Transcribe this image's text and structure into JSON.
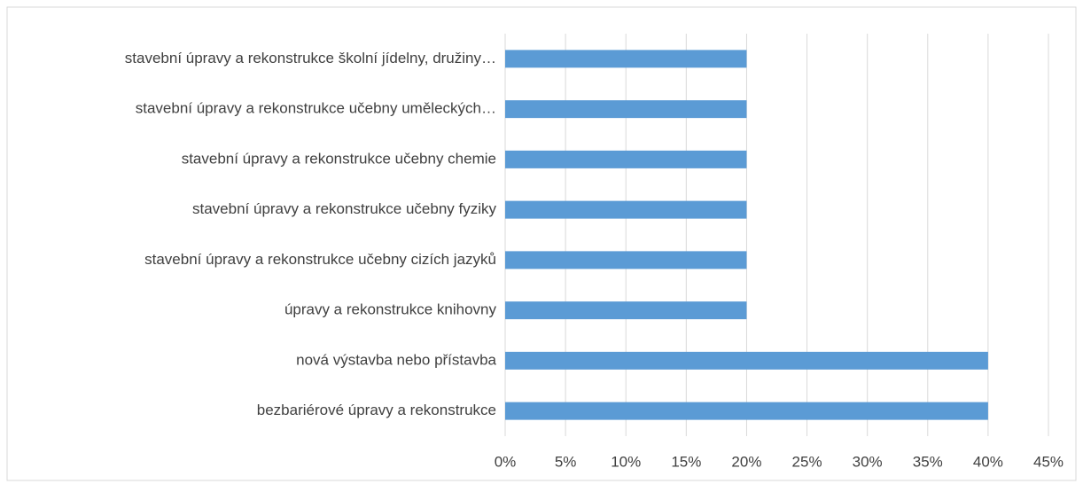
{
  "chart_data": {
    "type": "bar",
    "orientation": "horizontal",
    "categories": [
      "stavební úpravy a rekonstrukce školní jídelny, družiny…",
      "stavební úpravy a rekonstrukce učebny uměleckých…",
      "stavební úpravy a rekonstrukce učebny chemie",
      "stavební úpravy a rekonstrukce učebny fyziky",
      "stavební úpravy a rekonstrukce učebny cizích jazyků",
      "úpravy a rekonstrukce knihovny",
      "nová výstavba nebo přístavba",
      "bezbariérové úpravy a rekonstrukce"
    ],
    "values": [
      20,
      20,
      20,
      20,
      20,
      20,
      40,
      40
    ],
    "color": "#5b9bd5",
    "xlim": [
      0,
      45
    ],
    "xticks": [
      {
        "value": 0,
        "label": "0%"
      },
      {
        "value": 5,
        "label": "5%"
      },
      {
        "value": 10,
        "label": "10%"
      },
      {
        "value": 15,
        "label": "15%"
      },
      {
        "value": 20,
        "label": "20%"
      },
      {
        "value": 25,
        "label": "25%"
      },
      {
        "value": 30,
        "label": "30%"
      },
      {
        "value": 35,
        "label": "35%"
      },
      {
        "value": 40,
        "label": "40%"
      },
      {
        "value": 45,
        "label": "45%"
      }
    ],
    "grid": true
  }
}
